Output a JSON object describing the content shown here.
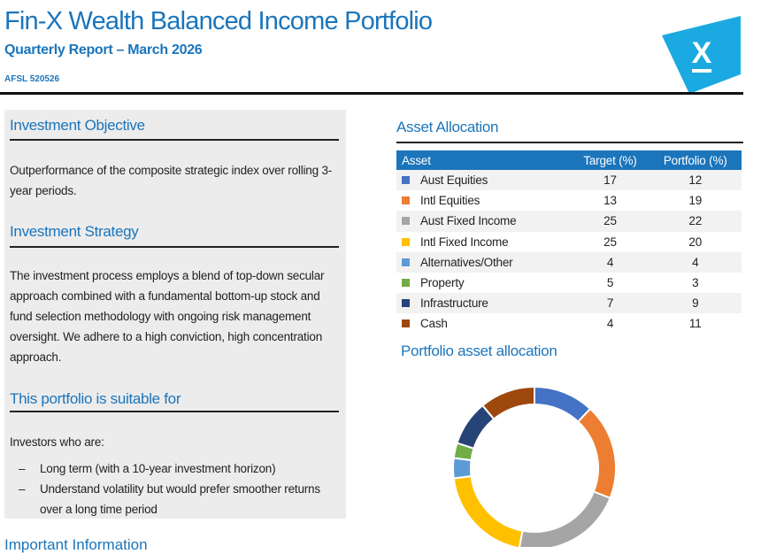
{
  "header": {
    "title": "Fin-X Wealth Balanced Income Portfolio",
    "subtitle": "Quarterly Report – March 2026",
    "afsl": "AFSL 520526",
    "logo_letter": "X",
    "brand_color": "#1b75bb",
    "logo_color": "#1ba9e1"
  },
  "left": {
    "objective_heading": "Investment Objective",
    "objective_text": "Outperformance of the composite strategic index over rolling 3-year periods.",
    "strategy_heading": "Investment Strategy",
    "strategy_text": "The investment process employs a blend of top-down secular approach combined with a fundamental bottom-up stock and fund selection methodology with ongoing risk management oversight. We adhere to a high conviction, high concentration approach.",
    "suitable_heading": "This portfolio is suitable for",
    "suitable_intro": "Investors who are:",
    "suitable_items": [
      "Long term (with a 10-year investment horizon)",
      "Understand volatility but would prefer smoother returns over a long time period"
    ],
    "clipped_heading": "Important Information"
  },
  "allocation": {
    "heading": "Asset Allocation",
    "columns": [
      "Asset",
      "Target (%)",
      "Portfolio (%)"
    ],
    "rows": [
      {
        "asset": "Aust Equities",
        "target": "17",
        "portfolio": "12",
        "color": "#4472c4"
      },
      {
        "asset": "Intl Equities",
        "target": "13",
        "portfolio": "19",
        "color": "#ed7d31"
      },
      {
        "asset": "Aust Fixed Income",
        "target": "25",
        "portfolio": "22",
        "color": "#a5a5a5"
      },
      {
        "asset": "Intl Fixed Income",
        "target": "25",
        "portfolio": "20",
        "color": "#ffc000"
      },
      {
        "asset": "Alternatives/Other",
        "target": "4",
        "portfolio": "4",
        "color": "#5b9bd5"
      },
      {
        "asset": "Property",
        "target": "5",
        "portfolio": "3",
        "color": "#70ad47"
      },
      {
        "asset": "Infrastructure",
        "target": "7",
        "portfolio": "9",
        "color": "#264478"
      },
      {
        "asset": "Cash",
        "target": "4",
        "portfolio": "11",
        "color": "#9e480e"
      }
    ]
  },
  "chart_title": "Portfolio asset allocation",
  "chart_data": {
    "type": "pie",
    "donut": true,
    "title": "Portfolio asset allocation",
    "categories": [
      "Aust Equities",
      "Intl Equities",
      "Aust Fixed Income",
      "Intl Fixed Income",
      "Alternatives/Other",
      "Property",
      "Infrastructure",
      "Cash"
    ],
    "values": [
      12,
      19,
      22,
      20,
      4,
      3,
      9,
      11
    ],
    "colors": [
      "#4472c4",
      "#ed7d31",
      "#a5a5a5",
      "#ffc000",
      "#5b9bd5",
      "#70ad47",
      "#264478",
      "#9e480e"
    ]
  }
}
